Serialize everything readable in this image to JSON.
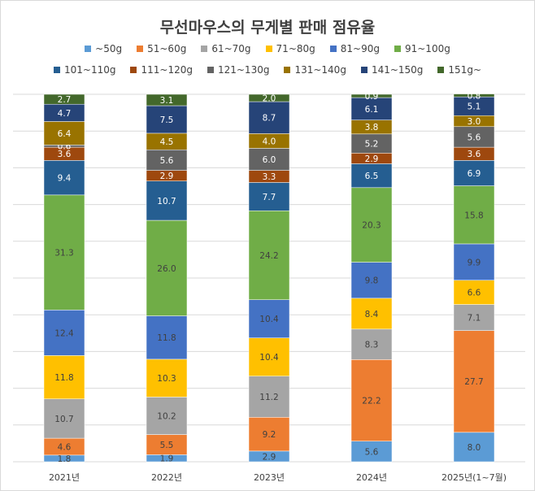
{
  "chart_data": {
    "type": "bar",
    "stacked": true,
    "title": "무선마우스의 무게별 판매 점유율",
    "categories": [
      "2021년",
      "2022년",
      "2023년",
      "2024년",
      "2025년(1~7월)"
    ],
    "ylim": [
      0,
      100
    ],
    "grid": true,
    "legend_position": "top",
    "series": [
      {
        "name": "~50g",
        "color": "#5B9BD5",
        "values": [
          1.8,
          1.9,
          2.9,
          5.6,
          8.0
        ]
      },
      {
        "name": "51~60g",
        "color": "#ED7D31",
        "values": [
          4.6,
          5.5,
          9.2,
          22.2,
          27.7
        ]
      },
      {
        "name": "61~70g",
        "color": "#A5A5A5",
        "values": [
          10.7,
          10.2,
          11.2,
          8.3,
          7.1
        ]
      },
      {
        "name": "71~80g",
        "color": "#FFC000",
        "values": [
          11.8,
          10.3,
          10.4,
          8.4,
          6.6
        ]
      },
      {
        "name": "81~90g",
        "color": "#4472C4",
        "values": [
          12.4,
          11.8,
          10.4,
          9.8,
          9.9
        ]
      },
      {
        "name": "91~100g",
        "color": "#70AD47",
        "values": [
          31.3,
          26.0,
          24.2,
          20.3,
          15.8
        ]
      },
      {
        "name": "101~110g",
        "color": "#255E91",
        "values": [
          9.4,
          10.7,
          7.7,
          6.5,
          6.9
        ]
      },
      {
        "name": "111~120g",
        "color": "#9E480E",
        "values": [
          3.6,
          2.9,
          3.3,
          2.9,
          3.6
        ]
      },
      {
        "name": "121~130g",
        "color": "#636363",
        "values": [
          0.6,
          5.6,
          6.0,
          5.2,
          5.6
        ]
      },
      {
        "name": "131~140g",
        "color": "#997300",
        "values": [
          6.4,
          4.5,
          4.0,
          3.8,
          3.0
        ]
      },
      {
        "name": "141~150g",
        "color": "#264478",
        "values": [
          4.7,
          7.5,
          8.7,
          6.1,
          5.1
        ]
      },
      {
        "name": "151g~",
        "color": "#43682B",
        "values": [
          2.7,
          3.1,
          2.0,
          0.9,
          0.8
        ]
      }
    ]
  }
}
